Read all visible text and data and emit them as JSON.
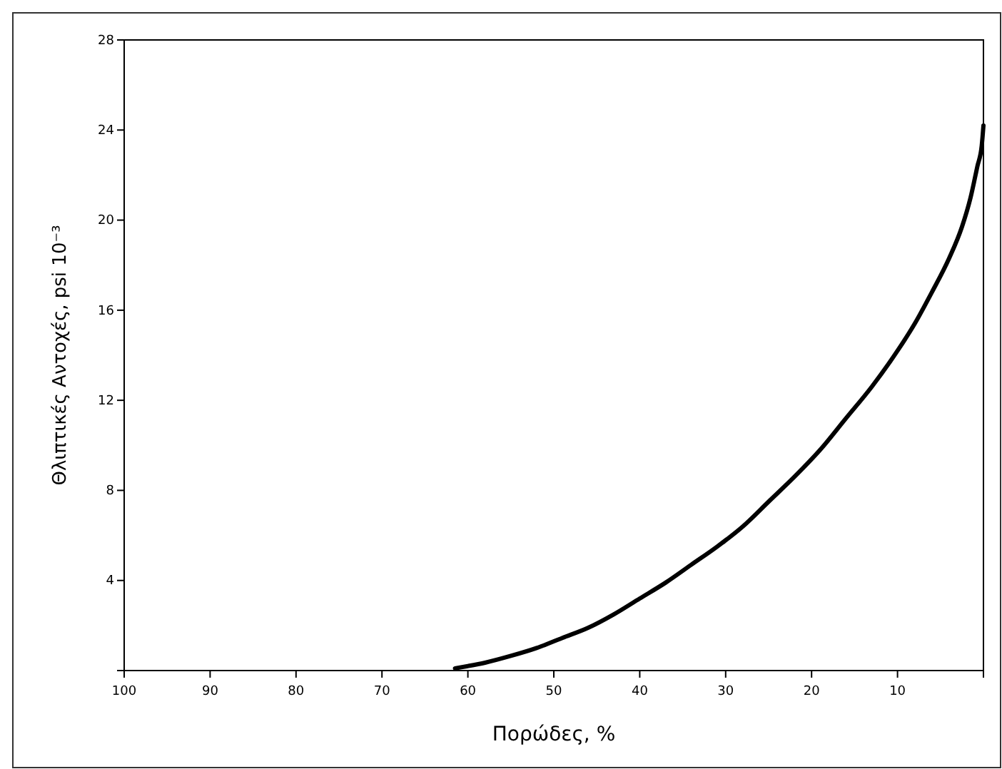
{
  "chart_data": {
    "type": "line",
    "xlabel": "Πορώδες, %",
    "ylabel": "Θλιπτικές Αντοχές, psi 10⁻³",
    "xlim": [
      100,
      0
    ],
    "xticks": [
      100,
      90,
      80,
      70,
      60,
      50,
      40,
      30,
      20,
      10,
      {
        "value": 0,
        "label": null
      }
    ],
    "ylim": [
      0,
      28
    ],
    "yticks": [
      {
        "value": 0,
        "label": null
      },
      4,
      8,
      12,
      16,
      20,
      24,
      28
    ],
    "grid": false,
    "marker": "none",
    "line_style": "solid",
    "series": [
      {
        "color": "#000000",
        "x": [
          61.5,
          60,
          58,
          55,
          52,
          49,
          46,
          43,
          40,
          37,
          34,
          31,
          28,
          25,
          22,
          19,
          16,
          13,
          10,
          8,
          6,
          4,
          2.5,
          1.5,
          0.7,
          0.2,
          0
        ],
        "values": [
          0.1,
          0.2,
          0.35,
          0.65,
          1.0,
          1.45,
          1.9,
          2.5,
          3.2,
          3.9,
          4.7,
          5.5,
          6.4,
          7.5,
          8.6,
          9.8,
          11.2,
          12.6,
          14.2,
          15.4,
          16.8,
          18.3,
          19.7,
          21.0,
          22.4,
          23.3,
          24.2
        ]
      }
    ]
  }
}
